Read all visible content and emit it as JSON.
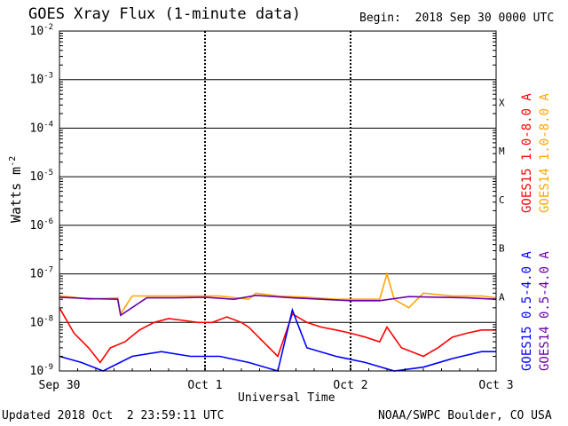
{
  "header": {
    "title": "GOES Xray Flux (1-minute data)",
    "begin_label": "Begin:  2018 Sep 30 0000 UTC"
  },
  "footer": {
    "updated": "Updated 2018 Oct  2 23:59:11 UTC",
    "credit": "NOAA/SWPC Boulder, CO USA"
  },
  "colors": {
    "goes15_long": "#ff0000",
    "goes14_long": "#ffa500",
    "goes15_short": "#0000ff",
    "goes14_short": "#6a00a8"
  },
  "chart_data": {
    "type": "line",
    "title": "GOES Xray Flux (1-minute data)",
    "xlabel": "Universal Time",
    "ylabel": "Watts m-2",
    "yscale": "log",
    "ylim": [
      1e-09,
      0.01
    ],
    "xlim_days": [
      0,
      3
    ],
    "x_ticks": [
      "Sep 30",
      "Oct 1",
      "Oct 2",
      "Oct 3"
    ],
    "y_ticks": [
      {
        "base": "10",
        "exp": "-9"
      },
      {
        "base": "10",
        "exp": "-8"
      },
      {
        "base": "10",
        "exp": "-7"
      },
      {
        "base": "10",
        "exp": "-6"
      },
      {
        "base": "10",
        "exp": "-5"
      },
      {
        "base": "10",
        "exp": "-4"
      },
      {
        "base": "10",
        "exp": "-3"
      },
      {
        "base": "10",
        "exp": "-2"
      }
    ],
    "flare_classes": [
      {
        "label": "A",
        "value": 1e-08
      },
      {
        "label": "B",
        "value": 1e-07
      },
      {
        "label": "C",
        "value": 1e-06
      },
      {
        "label": "M",
        "value": 1e-05
      },
      {
        "label": "X",
        "value": 0.0001
      }
    ],
    "grid": true,
    "legend_position": "right",
    "series": [
      {
        "name": "GOES15 1.0-8.0 A",
        "color": "#ff0000",
        "x": [
          0.0,
          0.1,
          0.2,
          0.28,
          0.35,
          0.45,
          0.55,
          0.65,
          0.75,
          0.85,
          0.95,
          1.05,
          1.15,
          1.25,
          1.3,
          1.4,
          1.5,
          1.6,
          1.7,
          1.8,
          1.9,
          2.0,
          2.1,
          2.2,
          2.25,
          2.35,
          2.5,
          2.6,
          2.7,
          2.8,
          2.9,
          3.0
        ],
        "y": [
          2e-08,
          6e-09,
          3e-09,
          1.5e-09,
          3e-09,
          4e-09,
          7e-09,
          1e-08,
          1.2e-08,
          1.1e-08,
          1e-08,
          1e-08,
          1.3e-08,
          1e-08,
          8e-09,
          4e-09,
          2e-09,
          1.5e-08,
          1e-08,
          8e-09,
          7e-09,
          6e-09,
          5e-09,
          4e-09,
          8e-09,
          3e-09,
          2e-09,
          3e-09,
          5e-09,
          6e-09,
          7e-09,
          7e-09
        ]
      },
      {
        "name": "GOES14 1.0-8.0 A",
        "color": "#ffa500",
        "x": [
          0.0,
          0.1,
          0.2,
          0.4,
          0.42,
          0.5,
          0.7,
          0.9,
          1.1,
          1.3,
          1.35,
          1.5,
          1.7,
          1.9,
          2.1,
          2.2,
          2.25,
          2.3,
          2.4,
          2.5,
          2.7,
          2.9,
          3.0
        ],
        "y": [
          3.5e-08,
          3.3e-08,
          3e-08,
          3.2e-08,
          1.5e-08,
          3.5e-08,
          3.5e-08,
          3.5e-08,
          3.5e-08,
          3e-08,
          4e-08,
          3.5e-08,
          3.3e-08,
          3e-08,
          3e-08,
          3e-08,
          1e-07,
          3e-08,
          2e-08,
          4e-08,
          3.5e-08,
          3.5e-08,
          3.2e-08
        ]
      },
      {
        "name": "GOES15 0.5-4.0 A",
        "color": "#0000ff",
        "x": [
          0.0,
          0.15,
          0.3,
          0.5,
          0.7,
          0.9,
          1.1,
          1.3,
          1.5,
          1.6,
          1.7,
          1.9,
          2.1,
          2.3,
          2.5,
          2.7,
          2.9,
          3.0
        ],
        "y": [
          2e-09,
          1.5e-09,
          1e-09,
          2e-09,
          2.5e-09,
          2e-09,
          2e-09,
          1.5e-09,
          1e-09,
          1.8e-08,
          3e-09,
          2e-09,
          1.5e-09,
          1e-09,
          1.2e-09,
          1.8e-09,
          2.5e-09,
          2.5e-09
        ]
      },
      {
        "name": "GOES14 0.5-4.0 A",
        "color": "#6a00a8",
        "x": [
          0.0,
          0.2,
          0.4,
          0.42,
          0.6,
          0.8,
          1.0,
          1.2,
          1.35,
          1.6,
          1.8,
          2.0,
          2.2,
          2.4,
          2.6,
          2.8,
          3.0
        ],
        "y": [
          3.3e-08,
          3.1e-08,
          3e-08,
          1.4e-08,
          3.2e-08,
          3.2e-08,
          3.3e-08,
          3e-08,
          3.6e-08,
          3.2e-08,
          3e-08,
          2.8e-08,
          2.8e-08,
          3.4e-08,
          3.3e-08,
          3.2e-08,
          3e-08
        ]
      }
    ]
  }
}
